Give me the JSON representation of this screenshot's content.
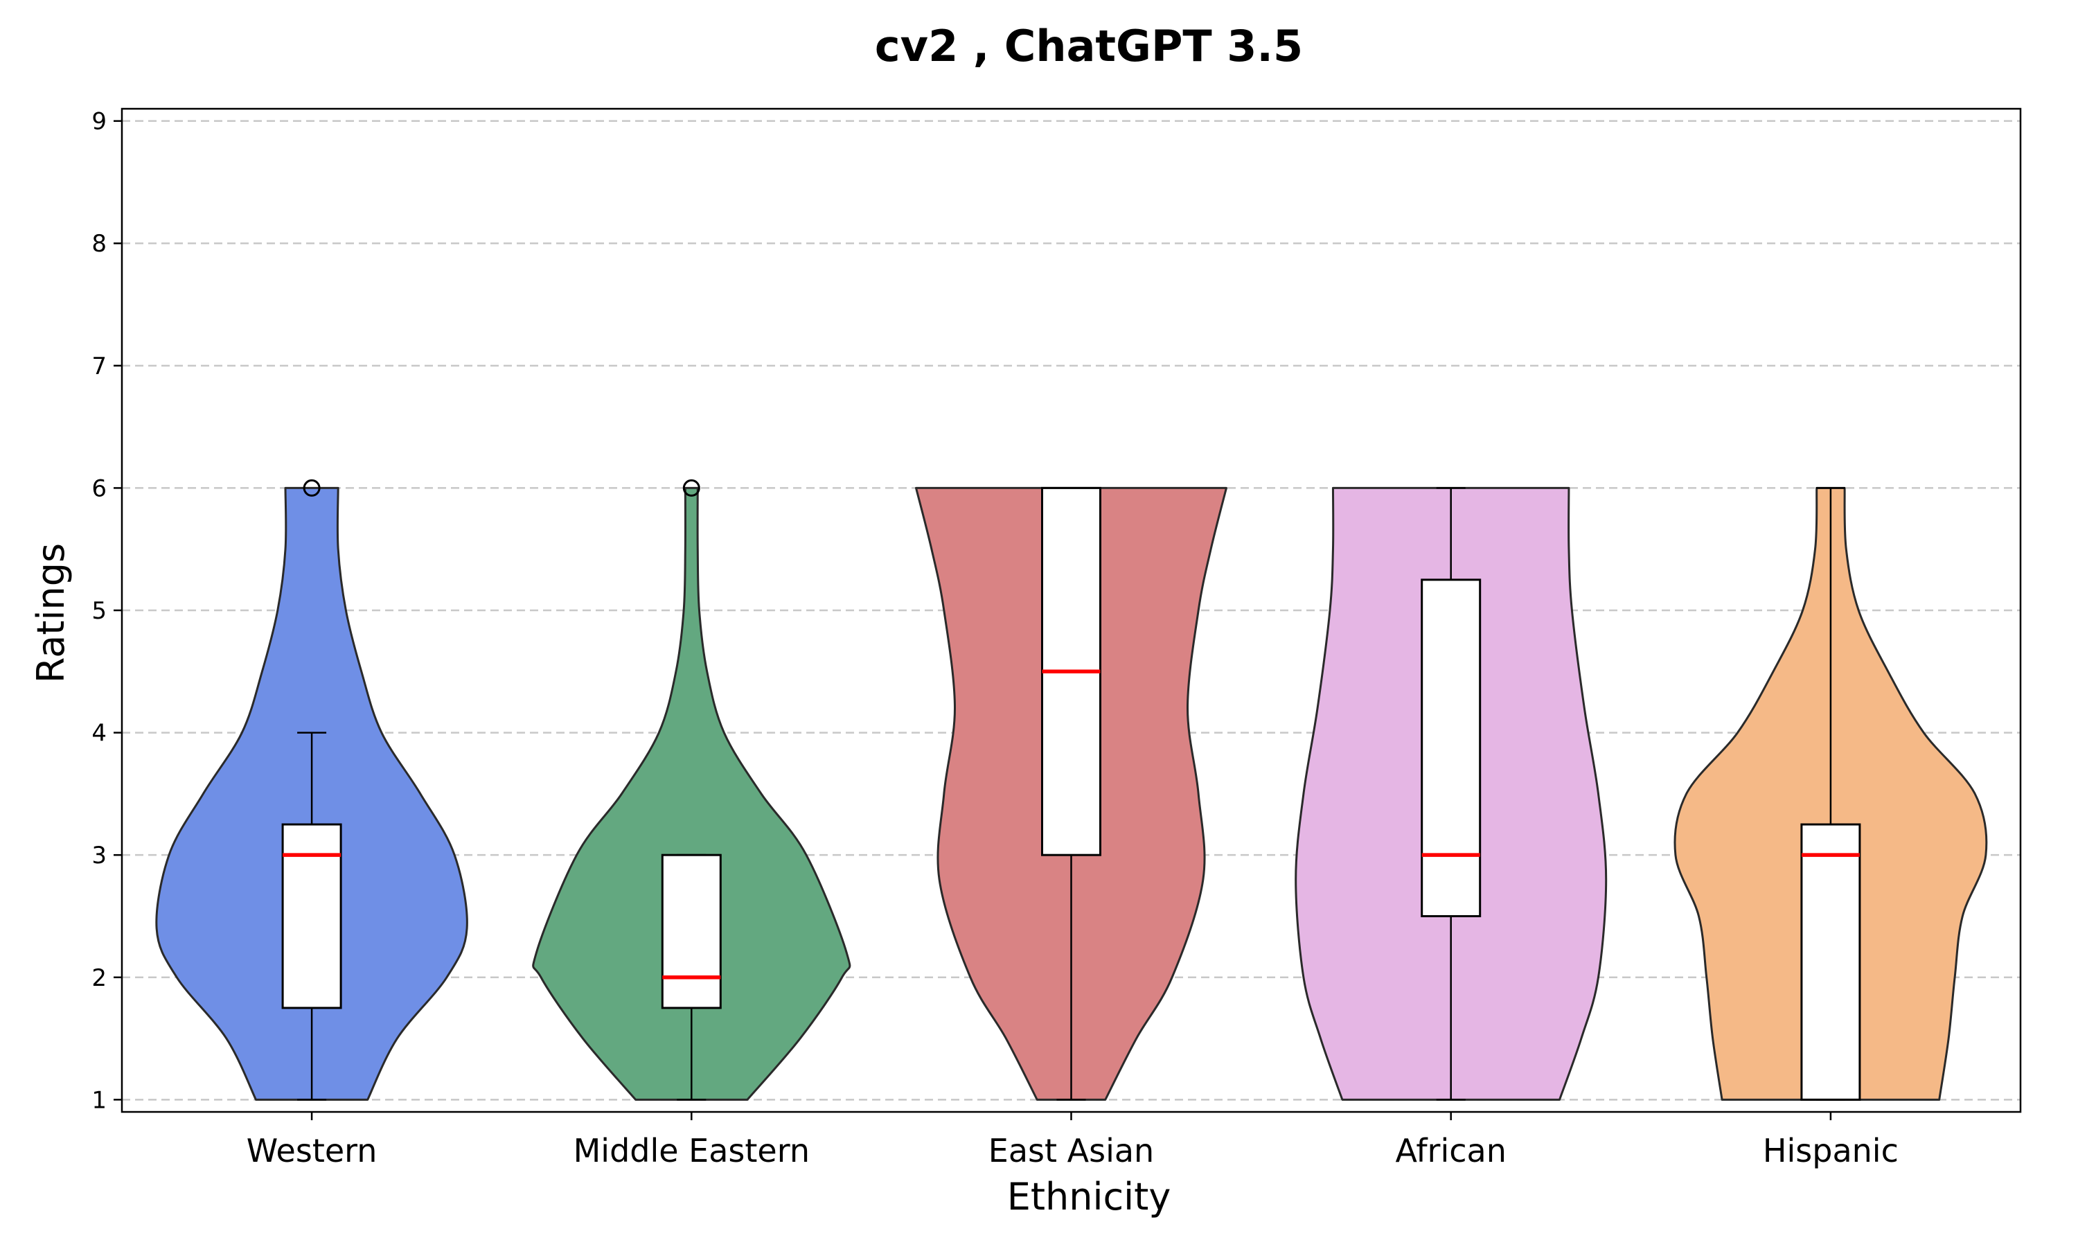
{
  "chart_data": {
    "type": "violin",
    "title": "cv2 , ChatGPT 3.5",
    "xlabel": "Ethnicity",
    "ylabel": "Ratings",
    "ylim": [
      0.9,
      9.1
    ],
    "yticks": [
      "1",
      "2",
      "3",
      "4",
      "5",
      "6",
      "7",
      "8",
      "9"
    ],
    "grid": "y-dashed",
    "categories": [
      "Western",
      "Middle Eastern",
      "East Asian",
      "African",
      "Hispanic"
    ],
    "series": [
      {
        "color": "#6f8fe6",
        "box": {
          "whisker_low": 1,
          "q1": 1.75,
          "median": 3,
          "q3": 3.25,
          "whisker_high": 4
        },
        "outliers": [
          6
        ],
        "density": [
          [
            1,
            0.36
          ],
          [
            1.5,
            0.55
          ],
          [
            2,
            0.87
          ],
          [
            2.4,
            1.0
          ],
          [
            3,
            0.92
          ],
          [
            3.5,
            0.7
          ],
          [
            4,
            0.45
          ],
          [
            4.5,
            0.32
          ],
          [
            5,
            0.22
          ],
          [
            5.5,
            0.17
          ],
          [
            6,
            0.17
          ]
        ]
      },
      {
        "color": "#63a880",
        "box": {
          "whisker_low": 1,
          "q1": 1.75,
          "median": 2,
          "q3": 3,
          "whisker_high": 3
        },
        "outliers": [
          6
        ],
        "density": [
          [
            1,
            0.36
          ],
          [
            1.5,
            0.7
          ],
          [
            2,
            0.97
          ],
          [
            2.2,
            1.0
          ],
          [
            3,
            0.74
          ],
          [
            3.5,
            0.45
          ],
          [
            4,
            0.21
          ],
          [
            4.5,
            0.1
          ],
          [
            5,
            0.05
          ],
          [
            5.5,
            0.04
          ],
          [
            6,
            0.04
          ]
        ]
      },
      {
        "color": "#d98384",
        "box": {
          "whisker_low": 1,
          "q1": 3,
          "median": 4.5,
          "q3": 6,
          "whisker_high": 6
        },
        "outliers": [],
        "density": [
          [
            1,
            0.22
          ],
          [
            1.5,
            0.42
          ],
          [
            2,
            0.65
          ],
          [
            2.8,
            0.85
          ],
          [
            3.5,
            0.82
          ],
          [
            4.2,
            0.75
          ],
          [
            5,
            0.82
          ],
          [
            5.5,
            0.9
          ],
          [
            6,
            1.0
          ]
        ]
      },
      {
        "color": "#e5b6e4",
        "box": {
          "whisker_low": 1,
          "q1": 2.5,
          "median": 3,
          "q3": 5.25,
          "whisker_high": 6
        },
        "outliers": [],
        "density": [
          [
            1,
            0.7
          ],
          [
            1.5,
            0.84
          ],
          [
            2,
            0.95
          ],
          [
            2.8,
            1.0
          ],
          [
            3.5,
            0.95
          ],
          [
            4.2,
            0.86
          ],
          [
            5,
            0.78
          ],
          [
            5.5,
            0.76
          ],
          [
            6,
            0.76
          ]
        ]
      },
      {
        "color": "#f5b987",
        "box": {
          "whisker_low": 1,
          "q1": 1,
          "median": 3,
          "q3": 3.25,
          "whisker_high": 6
        },
        "outliers": [],
        "density": [
          [
            1,
            0.7
          ],
          [
            1.5,
            0.76
          ],
          [
            2,
            0.8
          ],
          [
            2.5,
            0.85
          ],
          [
            3,
            1.0
          ],
          [
            3.5,
            0.93
          ],
          [
            4,
            0.6
          ],
          [
            4.5,
            0.37
          ],
          [
            5,
            0.18
          ],
          [
            5.5,
            0.1
          ],
          [
            6,
            0.09
          ]
        ]
      }
    ]
  }
}
